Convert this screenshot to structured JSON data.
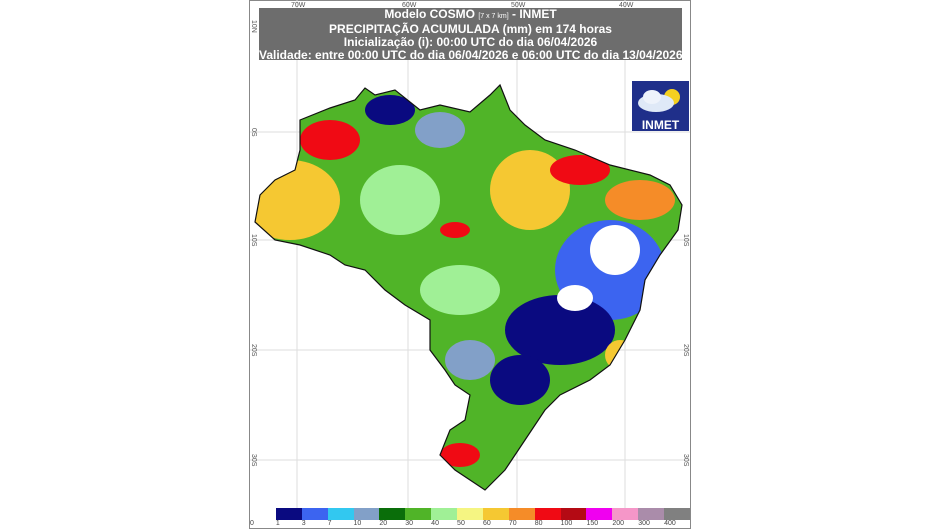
{
  "header": {
    "line1_prefix": "Modelo COSMO",
    "line1_res": "[7 x 7 km]",
    "line1_suffix": "- INMET",
    "line2": "PRECIPITAÇÃO ACUMULADA (mm) em 174 horas",
    "line3": "Inicialização (i): 00:00 UTC do dia 06/04/2026",
    "line4": "Validade: entre 00:00 UTC do dia 06/04/2026 e 06:00 UTC do dia 13/04/2026"
  },
  "axes": {
    "lon": [
      "70W",
      "60W",
      "50W",
      "40W"
    ],
    "lat": [
      "10N",
      "0S",
      "10S",
      "20S",
      "30S"
    ]
  },
  "logo": {
    "text": "INMET"
  },
  "legend": {
    "labels": [
      "0",
      "1",
      "3",
      "7",
      "10",
      "20",
      "30",
      "40",
      "50",
      "60",
      "70",
      "80",
      "100",
      "150",
      "200",
      "300",
      "400"
    ],
    "colors": [
      "#ffffff",
      "#0a0a80",
      "#3c64f0",
      "#32c8f0",
      "#82a0c8",
      "#0a6e0a",
      "#50b428",
      "#a0f096",
      "#f5f582",
      "#f5c832",
      "#f58c28",
      "#f00a14",
      "#b40a14",
      "#f000f0",
      "#f596c8",
      "#aa8caa",
      "#808080"
    ]
  }
}
